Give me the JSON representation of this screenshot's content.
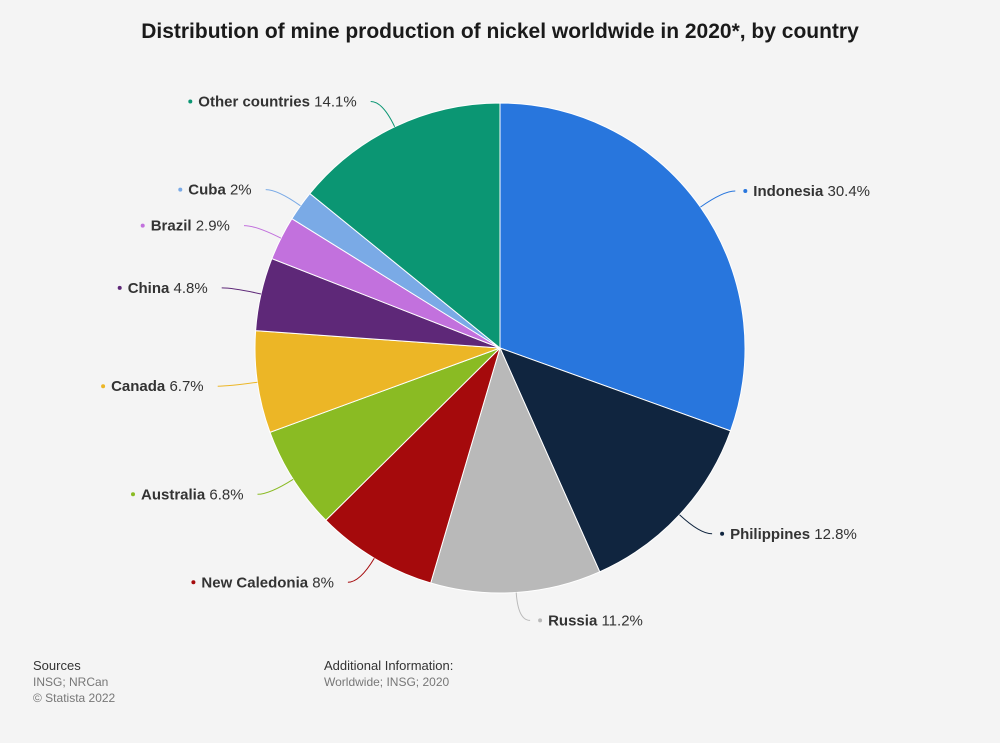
{
  "chart_data": {
    "type": "pie",
    "title": "Distribution of mine production of nickel worldwide in 2020*, by country",
    "slices": [
      {
        "label": "Indonesia",
        "value": 30.4,
        "value_text": "30.4%",
        "color": "#2876dd"
      },
      {
        "label": "Philippines",
        "value": 12.8,
        "value_text": "12.8%",
        "color": "#10253f"
      },
      {
        "label": "Russia",
        "value": 11.2,
        "value_text": "11.2%",
        "color": "#b9b9b9"
      },
      {
        "label": "New Caledonia",
        "value": 8,
        "value_text": "8%",
        "color": "#a50a0c"
      },
      {
        "label": "Australia",
        "value": 6.8,
        "value_text": "6.8%",
        "color": "#8abb23"
      },
      {
        "label": "Canada",
        "value": 6.7,
        "value_text": "6.7%",
        "color": "#ecb626"
      },
      {
        "label": "China",
        "value": 4.8,
        "value_text": "4.8%",
        "color": "#5e2878"
      },
      {
        "label": "Brazil",
        "value": 2.9,
        "value_text": "2.9%",
        "color": "#c271dd"
      },
      {
        "label": "Cuba",
        "value": 2,
        "value_text": "2%",
        "color": "#7aaae6"
      },
      {
        "label": "Other countries",
        "value": 14.1,
        "value_text": "14.1%",
        "color": "#0b9673"
      }
    ]
  },
  "footer": {
    "sources_heading": "Sources",
    "sources_line1": "INSG; NRCan",
    "sources_line2": "© Statista 2022",
    "additional_heading": "Additional Information:",
    "additional_text": "Worldwide; INSG; 2020"
  }
}
